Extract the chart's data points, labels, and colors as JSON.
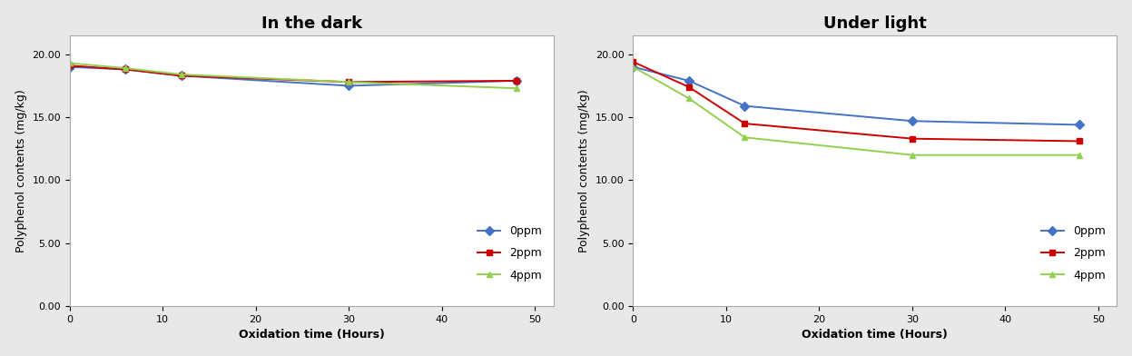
{
  "dark": {
    "title": "In the dark",
    "x": [
      0,
      6,
      12,
      30,
      48
    ],
    "series": [
      {
        "label": "0ppm",
        "values": [
          19.0,
          18.8,
          18.3,
          17.5,
          17.9
        ],
        "color": "#4472C4",
        "marker": "D"
      },
      {
        "label": "2ppm",
        "values": [
          19.1,
          18.8,
          18.3,
          17.8,
          17.9
        ],
        "color": "#CC0000",
        "marker": "s"
      },
      {
        "label": "4ppm",
        "values": [
          19.3,
          18.9,
          18.4,
          17.8,
          17.3
        ],
        "color": "#92D050",
        "marker": "^"
      }
    ]
  },
  "light": {
    "title": "Under light",
    "x": [
      0,
      6,
      12,
      30,
      48
    ],
    "series": [
      {
        "label": "0ppm",
        "values": [
          19.0,
          17.9,
          15.9,
          14.7,
          14.4
        ],
        "color": "#4472C4",
        "marker": "D"
      },
      {
        "label": "2ppm",
        "values": [
          19.4,
          17.4,
          14.5,
          13.3,
          13.1
        ],
        "color": "#CC0000",
        "marker": "s"
      },
      {
        "label": "4ppm",
        "values": [
          19.0,
          16.5,
          13.4,
          12.0,
          12.0
        ],
        "color": "#92D050",
        "marker": "^"
      }
    ]
  },
  "xlabel": "Oxidation time (Hours)",
  "ylabel": "Polyphenol contents (mg/kg)",
  "yticks": [
    0.0,
    5.0,
    10.0,
    15.0,
    20.0
  ],
  "xticks": [
    0,
    10,
    20,
    30,
    40,
    50
  ],
  "ylim": [
    0.0,
    21.5
  ],
  "xlim": [
    0,
    52
  ],
  "fig_bg_color": "#E8E8E8",
  "plot_bg_color": "#FFFFFF",
  "border_color": "#AAAAAA",
  "title_fontsize": 13,
  "label_fontsize": 9,
  "tick_fontsize": 8,
  "legend_fontsize": 9,
  "linewidth": 1.4,
  "markersize": 5
}
